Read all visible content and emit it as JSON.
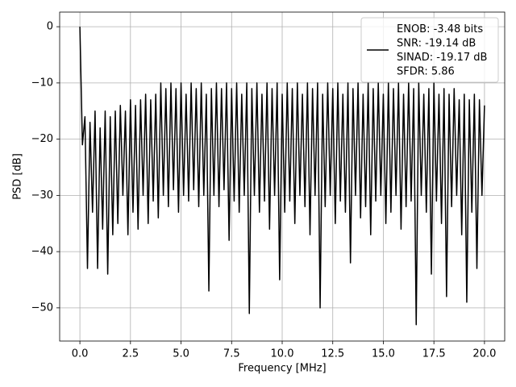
{
  "chart_data": {
    "type": "line",
    "xlabel": "Frequency [MHz]",
    "ylabel": "PSD [dB]",
    "x": [
      0,
      0.125,
      0.25,
      0.375,
      0.5,
      0.625,
      0.75,
      0.875,
      1,
      1.125,
      1.25,
      1.375,
      1.5,
      1.625,
      1.75,
      1.875,
      2,
      2.125,
      2.25,
      2.375,
      2.5,
      2.625,
      2.75,
      2.875,
      3,
      3.125,
      3.25,
      3.375,
      3.5,
      3.625,
      3.75,
      3.875,
      4,
      4.125,
      4.25,
      4.375,
      4.5,
      4.625,
      4.75,
      4.875,
      5,
      5.125,
      5.25,
      5.375,
      5.5,
      5.625,
      5.75,
      5.875,
      6,
      6.125,
      6.25,
      6.375,
      6.5,
      6.625,
      6.75,
      6.875,
      7,
      7.125,
      7.25,
      7.375,
      7.5,
      7.625,
      7.75,
      7.875,
      8,
      8.125,
      8.25,
      8.375,
      8.5,
      8.625,
      8.75,
      8.875,
      9,
      9.125,
      9.25,
      9.375,
      9.5,
      9.625,
      9.75,
      9.875,
      10,
      10.125,
      10.25,
      10.375,
      10.5,
      10.625,
      10.75,
      10.875,
      11,
      11.125,
      11.25,
      11.375,
      11.5,
      11.625,
      11.75,
      11.875,
      12,
      12.125,
      12.25,
      12.375,
      12.5,
      12.625,
      12.75,
      12.875,
      13,
      13.125,
      13.25,
      13.375,
      13.5,
      13.625,
      13.75,
      13.875,
      14,
      14.125,
      14.25,
      14.375,
      14.5,
      14.625,
      14.75,
      14.875,
      15,
      15.125,
      15.25,
      15.375,
      15.5,
      15.625,
      15.75,
      15.875,
      16,
      16.125,
      16.25,
      16.375,
      16.5,
      16.625,
      16.75,
      16.875,
      17,
      17.125,
      17.25,
      17.375,
      17.5,
      17.625,
      17.75,
      17.875,
      18,
      18.125,
      18.25,
      18.375,
      18.5,
      18.625,
      18.75,
      18.875,
      19,
      19.125,
      19.25,
      19.375,
      19.5,
      19.625,
      19.75,
      19.875,
      20
    ],
    "series": [
      {
        "name": "ENOB: -3.48 bits\nSNR: -19.14 dB\nSINAD: -19.17 dB\nSFDR: 5.86",
        "color": "#000000",
        "values": [
          0,
          -21,
          -16,
          -43,
          -17,
          -33,
          -15,
          -43,
          -18,
          -36,
          -15,
          -44,
          -16,
          -37,
          -15,
          -35,
          -14,
          -30,
          -15,
          -37,
          -13,
          -33,
          -14,
          -36,
          -13,
          -30,
          -12,
          -35,
          -13,
          -31,
          -12,
          -34,
          -10,
          -30,
          -11,
          -32,
          -10,
          -29,
          -11,
          -33,
          -10,
          -30,
          -12,
          -31,
          -10,
          -29,
          -11,
          -32,
          -10,
          -30,
          -12,
          -47,
          -11,
          -30,
          -10,
          -32,
          -11,
          -29,
          -10,
          -38,
          -11,
          -31,
          -10,
          -33,
          -12,
          -30,
          -10,
          -51,
          -11,
          -30,
          -10,
          -33,
          -12,
          -31,
          -10,
          -36,
          -11,
          -30,
          -10,
          -45,
          -12,
          -33,
          -10,
          -31,
          -11,
          -35,
          -10,
          -30,
          -12,
          -32,
          -10,
          -37,
          -11,
          -30,
          -10,
          -50,
          -12,
          -32,
          -10,
          -30,
          -11,
          -35,
          -10,
          -31,
          -12,
          -33,
          -10,
          -42,
          -11,
          -30,
          -10,
          -34,
          -12,
          -32,
          -10,
          -37,
          -11,
          -31,
          -10,
          -30,
          -12,
          -35,
          -10,
          -33,
          -11,
          -30,
          -10,
          -36,
          -12,
          -32,
          -10,
          -31,
          -11,
          -53,
          -10,
          -30,
          -12,
          -33,
          -11,
          -44,
          -10,
          -31,
          -12,
          -35,
          -11,
          -48,
          -12,
          -32,
          -11,
          -30,
          -13,
          -37,
          -12,
          -49,
          -13,
          -33,
          -12,
          -43,
          -13,
          -30,
          -14
        ]
      }
    ],
    "xlim": [
      -1,
      21
    ],
    "ylim": [
      -55.9,
      2.6
    ],
    "xticks": [
      {
        "value": 0,
        "label": "0.0"
      },
      2.5,
      {
        "value": 5,
        "label": "5.0"
      },
      7.5,
      {
        "value": 10,
        "label": "10.0"
      },
      12.5,
      {
        "value": 15,
        "label": "15.0"
      },
      17.5,
      {
        "value": 20,
        "label": "20.0"
      }
    ],
    "yticks": [
      {
        "value": -50,
        "label": "−50"
      },
      {
        "value": -40,
        "label": "−40"
      },
      {
        "value": -30,
        "label": "−30"
      },
      {
        "value": -20,
        "label": "−20"
      },
      {
        "value": -10,
        "label": "−10"
      },
      0
    ],
    "grid": true,
    "legend": "upper right"
  }
}
